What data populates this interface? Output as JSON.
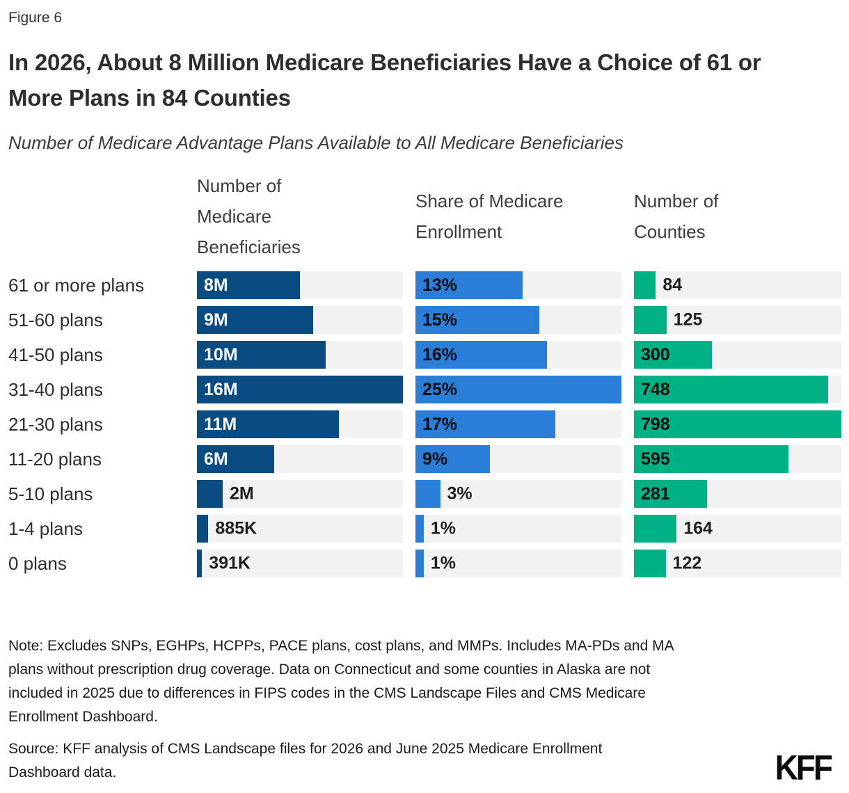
{
  "figure_label": "Figure 6",
  "title": "In 2026, About 8 Million Medicare Beneficiaries Have a Choice of 61 or More Plans in 84 Counties",
  "subtitle": "Number of Medicare Advantage Plans Available to All Medicare Beneficiaries",
  "note": "Note: Excludes SNPs, EGHPs, HCPPs, PACE plans, cost plans, and MMPs. Includes MA-PDs and MA plans without prescription drug coverage. Data on Connecticut and some counties in Alaska are not included in 2025 due to differences in FIPS codes in the CMS Landscape Files and CMS Medicare Enrollment Dashboard.",
  "source": "Source: KFF analysis of CMS Landscape files for 2026 and June 2025 Medicare Enrollment Dashboard data.",
  "logo_text": "KFF",
  "colors": {
    "beneficiaries_bar": "#0A4B82",
    "enrollment_bar": "#2B7ED8",
    "counties_bar": "#00B185",
    "bar_track": "#F2F2F2"
  },
  "chart_data": {
    "type": "bar",
    "orientation": "horizontal",
    "grid": false,
    "legend": null,
    "categories": [
      "61 or more plans",
      "51-60 plans",
      "41-50 plans",
      "31-40 plans",
      "21-30 plans",
      "11-20 plans",
      "5-10 plans",
      "1-4 plans",
      "0 plans"
    ],
    "series": [
      {
        "name": "Number of Medicare Beneficiaries",
        "values": [
          8000000,
          9000000,
          10000000,
          16000000,
          11000000,
          6000000,
          2000000,
          885000,
          391000
        ],
        "labels": [
          "8M",
          "9M",
          "10M",
          "16M",
          "11M",
          "6M",
          "2M",
          "885K",
          "391K"
        ],
        "axis_max": 16000000,
        "color": "#0A4B82",
        "inside_label_color": "#FFFFFF"
      },
      {
        "name": "Share of Medicare Enrollment",
        "values": [
          13,
          15,
          16,
          25,
          17,
          9,
          3,
          1,
          1
        ],
        "labels": [
          "13%",
          "15%",
          "16%",
          "25%",
          "17%",
          "9%",
          "3%",
          "1%",
          "1%"
        ],
        "axis_max": 25,
        "color": "#2B7ED8",
        "inside_label_color": "#0d0d0d"
      },
      {
        "name": "Number of Counties",
        "values": [
          84,
          125,
          300,
          748,
          798,
          595,
          281,
          164,
          122
        ],
        "labels": [
          "84",
          "125",
          "300",
          "748",
          "798",
          "595",
          "281",
          "164",
          "122"
        ],
        "axis_max": 798,
        "color": "#00B185",
        "inside_label_color": "#0d0d0d"
      }
    ]
  }
}
